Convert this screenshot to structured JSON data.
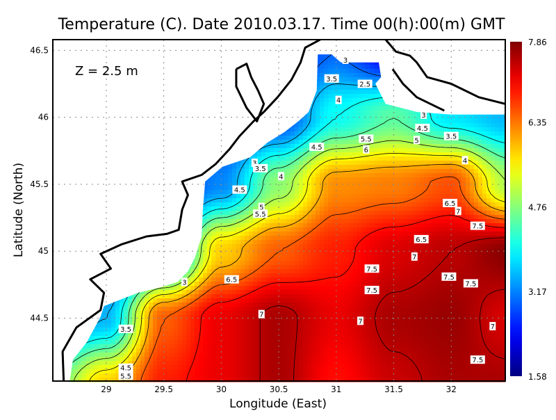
{
  "chart_data": {
    "type": "heatmap",
    "title": "Temperature (C). Date 2010.03.17. Time 00(h):00(m) GMT",
    "annotation": "Z = 2.5 m",
    "xlabel": "Longitude (East)",
    "ylabel": "Latitude (North)",
    "xlim": [
      28.535,
      32.47
    ],
    "ylim": [
      44.03,
      46.58
    ],
    "xticks": [
      "29",
      "29.5",
      "30",
      "30.5",
      "31",
      "31.5",
      "32"
    ],
    "yticks": [
      "44.5",
      "45",
      "45.5",
      "46",
      "46.5"
    ],
    "grid": true,
    "colorbar": {
      "range": [
        1.58,
        7.86
      ],
      "tick_labels": [
        "1.58",
        "3.17",
        "4.76",
        "6.35",
        "7.86"
      ],
      "colormap": "jet"
    },
    "contour_levels": [
      2.5,
      3,
      3.5,
      4,
      4.5,
      5,
      5.5,
      6,
      6.5,
      7,
      7.5
    ],
    "field": {
      "lons": [
        28.5,
        29,
        29.5,
        30,
        30.5,
        31,
        31.5,
        32,
        32.5
      ],
      "lats": [
        44.0,
        44.5,
        45.0,
        45.5,
        46.0,
        46.5
      ],
      "values": [
        [
          4.5,
          5.8,
          6.9,
          7.2,
          7.6,
          7.0,
          7.4,
          7.6,
          7.6
        ],
        [
          3.0,
          3.5,
          6.5,
          7.2,
          7.6,
          7.2,
          7.6,
          7.7,
          7.3
        ],
        [
          2.5,
          2.5,
          3.0,
          5.8,
          6.5,
          6.9,
          7.3,
          7.5,
          7.8
        ],
        [
          2.5,
          2.5,
          2.5,
          3.2,
          4.8,
          6.2,
          6.3,
          6.6,
          5.0
        ],
        [
          2.5,
          2.5,
          2.5,
          2.5,
          2.8,
          4.0,
          4.5,
          3.8,
          3.5
        ],
        [
          2.5,
          2.5,
          2.5,
          2.5,
          2.5,
          3.0,
          2.2,
          2.5,
          2.5
        ]
      ]
    },
    "sea_outline": [
      [
        28.68,
        44.02
      ],
      [
        28.71,
        44.19
      ],
      [
        28.83,
        44.32
      ],
      [
        28.95,
        44.51
      ],
      [
        28.98,
        44.59
      ],
      [
        29.13,
        44.64
      ],
      [
        29.28,
        44.69
      ],
      [
        29.47,
        44.73
      ],
      [
        29.62,
        44.77
      ],
      [
        29.71,
        44.85
      ],
      [
        29.77,
        44.95
      ],
      [
        29.83,
        45.11
      ],
      [
        29.84,
        45.31
      ],
      [
        29.86,
        45.52
      ],
      [
        30.01,
        45.63
      ],
      [
        30.25,
        45.7
      ],
      [
        30.4,
        45.81
      ],
      [
        30.55,
        45.89
      ],
      [
        30.67,
        45.97
      ],
      [
        30.76,
        46.04
      ],
      [
        30.83,
        46.2
      ],
      [
        30.84,
        46.47
      ],
      [
        30.96,
        46.47
      ],
      [
        31.04,
        46.41
      ],
      [
        31.37,
        46.41
      ],
      [
        31.39,
        46.3
      ],
      [
        31.34,
        46.25
      ],
      [
        31.43,
        46.1
      ],
      [
        31.7,
        46.04
      ],
      [
        32.0,
        46.02
      ],
      [
        32.47,
        46.02
      ],
      [
        32.47,
        44.02
      ]
    ],
    "coastlines": [
      [
        [
          28.63,
          44.02
        ],
        [
          28.62,
          44.25
        ],
        [
          28.74,
          44.43
        ],
        [
          28.95,
          44.56
        ],
        [
          28.98,
          44.69
        ],
        [
          28.86,
          44.79
        ],
        [
          29.04,
          44.87
        ],
        [
          28.95,
          44.98
        ],
        [
          29.13,
          45.05
        ],
        [
          29.35,
          45.11
        ],
        [
          29.53,
          45.13
        ],
        [
          29.63,
          45.16
        ],
        [
          29.66,
          45.31
        ],
        [
          29.71,
          45.42
        ],
        [
          29.66,
          45.52
        ],
        [
          29.83,
          45.57
        ],
        [
          29.95,
          45.65
        ],
        [
          30.07,
          45.76
        ],
        [
          30.16,
          45.86
        ],
        [
          30.28,
          45.97
        ],
        [
          30.37,
          46.04
        ],
        [
          30.49,
          46.15
        ],
        [
          30.61,
          46.28
        ],
        [
          30.69,
          46.41
        ],
        [
          30.73,
          46.52
        ],
        [
          30.86,
          46.58
        ]
      ],
      [
        [
          30.13,
          46.36
        ],
        [
          30.22,
          46.4
        ],
        [
          30.26,
          46.3
        ],
        [
          30.32,
          46.2
        ],
        [
          30.37,
          46.1
        ],
        [
          30.31,
          45.97
        ],
        [
          30.22,
          46.07
        ],
        [
          30.13,
          46.23
        ],
        [
          30.13,
          46.36
        ]
      ],
      [
        [
          31.43,
          46.58
        ],
        [
          31.52,
          46.49
        ],
        [
          31.64,
          46.46
        ],
        [
          31.7,
          46.41
        ],
        [
          31.79,
          46.3
        ],
        [
          32.0,
          46.25
        ],
        [
          32.24,
          46.15
        ],
        [
          32.47,
          46.1
        ]
      ],
      [
        [
          31.49,
          46.36
        ],
        [
          31.58,
          46.25
        ],
        [
          31.7,
          46.15
        ],
        [
          31.94,
          46.05
        ]
      ]
    ],
    "contour_labels": [
      {
        "text": "3",
        "lon": 31.08,
        "lat": 46.43
      },
      {
        "text": "3.5",
        "lon": 30.96,
        "lat": 46.29
      },
      {
        "text": "2.5",
        "lon": 31.25,
        "lat": 46.25
      },
      {
        "text": "4",
        "lon": 31.02,
        "lat": 46.13
      },
      {
        "text": "3",
        "lon": 31.76,
        "lat": 46.02
      },
      {
        "text": "4.5",
        "lon": 31.75,
        "lat": 45.92
      },
      {
        "text": "3.5",
        "lon": 32.0,
        "lat": 45.86
      },
      {
        "text": "5.5",
        "lon": 31.26,
        "lat": 45.84
      },
      {
        "text": "5",
        "lon": 31.7,
        "lat": 45.83
      },
      {
        "text": "4.5",
        "lon": 30.83,
        "lat": 45.78
      },
      {
        "text": "6",
        "lon": 31.26,
        "lat": 45.76
      },
      {
        "text": "4",
        "lon": 32.12,
        "lat": 45.68
      },
      {
        "text": "3",
        "lon": 30.29,
        "lat": 45.66
      },
      {
        "text": "3.5",
        "lon": 30.34,
        "lat": 45.62
      },
      {
        "text": "4",
        "lon": 30.52,
        "lat": 45.56
      },
      {
        "text": "4.5",
        "lon": 30.16,
        "lat": 45.46
      },
      {
        "text": "5",
        "lon": 30.35,
        "lat": 45.33
      },
      {
        "text": "5.5",
        "lon": 30.34,
        "lat": 45.28
      },
      {
        "text": "6.5",
        "lon": 31.99,
        "lat": 45.36
      },
      {
        "text": "7",
        "lon": 32.06,
        "lat": 45.3
      },
      {
        "text": "7.5",
        "lon": 32.23,
        "lat": 45.19
      },
      {
        "text": "6.5",
        "lon": 31.74,
        "lat": 45.09
      },
      {
        "text": "7",
        "lon": 31.68,
        "lat": 44.96
      },
      {
        "text": "7.5",
        "lon": 31.31,
        "lat": 44.87
      },
      {
        "text": "6.5",
        "lon": 30.09,
        "lat": 44.79
      },
      {
        "text": "3",
        "lon": 29.68,
        "lat": 44.77
      },
      {
        "text": "7.5",
        "lon": 31.98,
        "lat": 44.81
      },
      {
        "text": "7.5",
        "lon": 32.17,
        "lat": 44.76
      },
      {
        "text": "7.5",
        "lon": 31.31,
        "lat": 44.71
      },
      {
        "text": "3.5",
        "lon": 29.17,
        "lat": 44.42
      },
      {
        "text": "7",
        "lon": 30.35,
        "lat": 44.53
      },
      {
        "text": "7",
        "lon": 31.21,
        "lat": 44.48
      },
      {
        "text": "7",
        "lon": 32.36,
        "lat": 44.44
      },
      {
        "text": "7.5",
        "lon": 32.23,
        "lat": 44.19
      },
      {
        "text": "4.5",
        "lon": 29.17,
        "lat": 44.13
      },
      {
        "text": "5.5",
        "lon": 29.17,
        "lat": 44.07
      }
    ]
  }
}
